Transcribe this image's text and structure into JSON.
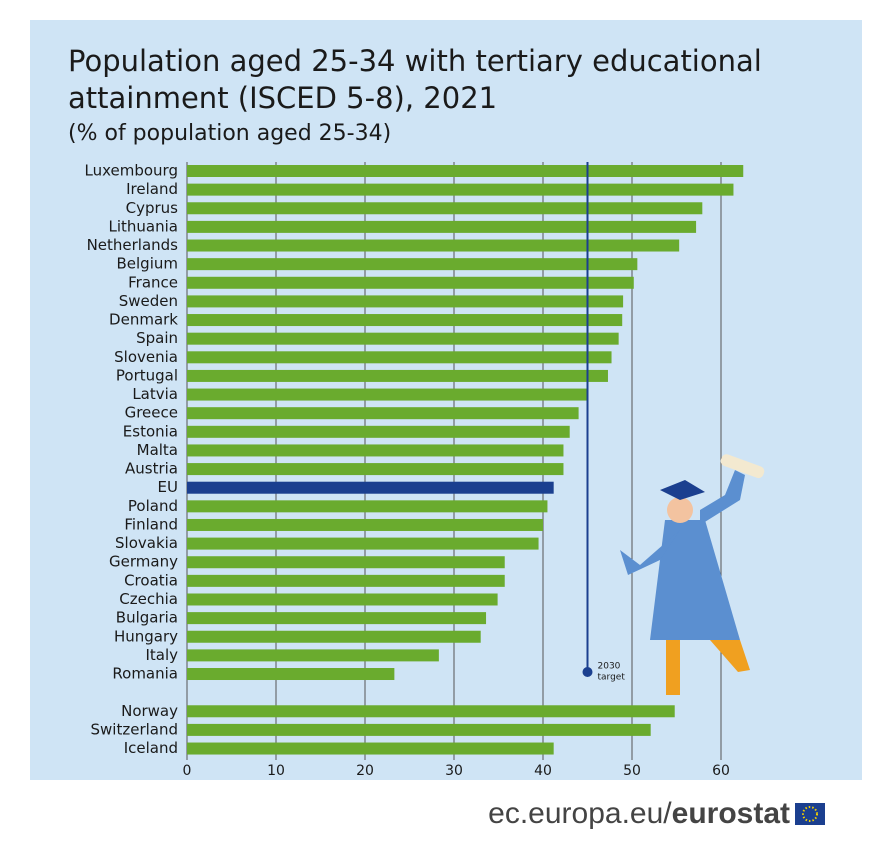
{
  "chart_data": {
    "type": "bar",
    "orientation": "horizontal",
    "title_lines": [
      "Population aged 25-34 with tertiary educational",
      "attainment (ISCED 5-8), 2021"
    ],
    "subtitle": "(% of population aged 25-34)",
    "categories": [
      "Luxembourg",
      "Ireland",
      "Cyprus",
      "Lithuania",
      "Netherlands",
      "Belgium",
      "France",
      "Sweden",
      "Denmark",
      "Spain",
      "Slovenia",
      "Portugal",
      "Latvia",
      "Greece",
      "Estonia",
      "Malta",
      "Austria",
      "EU",
      "Poland",
      "Finland",
      "Slovakia",
      "Germany",
      "Croatia",
      "Czechia",
      "Bulgaria",
      "Hungary",
      "Italy",
      "Romania",
      "Norway",
      "Switzerland",
      "Iceland"
    ],
    "values": [
      62.5,
      61.4,
      57.9,
      57.2,
      55.3,
      50.6,
      50.2,
      49.0,
      48.9,
      48.5,
      47.7,
      47.3,
      45.1,
      44.0,
      43.0,
      42.3,
      42.3,
      41.2,
      40.5,
      40.0,
      39.5,
      35.7,
      35.7,
      34.9,
      33.6,
      33.0,
      28.3,
      23.3,
      54.8,
      52.1,
      41.2
    ],
    "color": "#6aab2e",
    "highlight": {
      "category": "EU",
      "color": "#1b3f8f"
    },
    "target": {
      "value": 45,
      "label_lines": [
        "2030",
        "target"
      ],
      "color": "#1b3f8f"
    },
    "xlim": [
      0,
      65
    ],
    "xticks": [
      0,
      10,
      20,
      30,
      40,
      50,
      60
    ],
    "grid": true,
    "source": [
      "ec.europa.eu/",
      "eurostat"
    ]
  }
}
